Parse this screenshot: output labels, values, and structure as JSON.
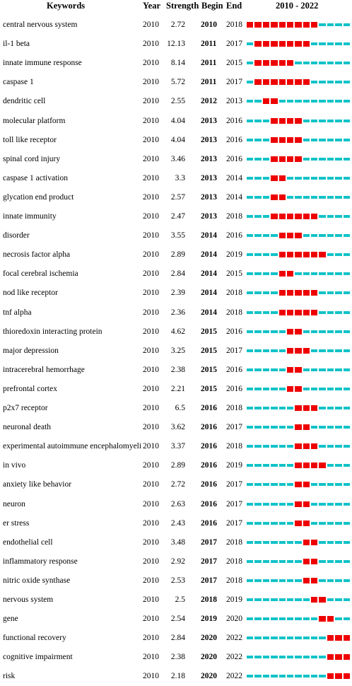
{
  "chart_data": {
    "type": "table",
    "headers": {
      "keyword": "Keywords",
      "year": "Year",
      "strength": "Strength",
      "begin": "Begin",
      "end": "End",
      "range": "2010 - 2022"
    },
    "timeline_range": [
      2010,
      2022
    ],
    "colors": {
      "burst": "#ee0000",
      "baseline": "#11c2c9"
    },
    "rows": [
      {
        "keyword": "central nervous system",
        "year": "2010",
        "strength": "2.72",
        "begin": "2010",
        "end": "2018"
      },
      {
        "keyword": "il-1 beta",
        "year": "2010",
        "strength": "12.13",
        "begin": "2011",
        "end": "2017"
      },
      {
        "keyword": "innate immune response",
        "year": "2010",
        "strength": "8.14",
        "begin": "2011",
        "end": "2015"
      },
      {
        "keyword": "caspase 1",
        "year": "2010",
        "strength": "5.72",
        "begin": "2011",
        "end": "2017"
      },
      {
        "keyword": "dendritic cell",
        "year": "2010",
        "strength": "2.55",
        "begin": "2012",
        "end": "2013"
      },
      {
        "keyword": "molecular platform",
        "year": "2010",
        "strength": "4.04",
        "begin": "2013",
        "end": "2016"
      },
      {
        "keyword": "toll like receptor",
        "year": "2010",
        "strength": "4.04",
        "begin": "2013",
        "end": "2016"
      },
      {
        "keyword": "spinal cord injury",
        "year": "2010",
        "strength": "3.46",
        "begin": "2013",
        "end": "2016"
      },
      {
        "keyword": "caspase 1 activation",
        "year": "2010",
        "strength": "3.3",
        "begin": "2013",
        "end": "2014"
      },
      {
        "keyword": "glycation end product",
        "year": "2010",
        "strength": "2.57",
        "begin": "2013",
        "end": "2014"
      },
      {
        "keyword": "innate immunity",
        "year": "2010",
        "strength": "2.47",
        "begin": "2013",
        "end": "2018"
      },
      {
        "keyword": "disorder",
        "year": "2010",
        "strength": "3.55",
        "begin": "2014",
        "end": "2016"
      },
      {
        "keyword": "necrosis factor alpha",
        "year": "2010",
        "strength": "2.89",
        "begin": "2014",
        "end": "2019"
      },
      {
        "keyword": "focal cerebral ischemia",
        "year": "2010",
        "strength": "2.84",
        "begin": "2014",
        "end": "2015"
      },
      {
        "keyword": "nod like receptor",
        "year": "2010",
        "strength": "2.39",
        "begin": "2014",
        "end": "2018"
      },
      {
        "keyword": "tnf alpha",
        "year": "2010",
        "strength": "2.36",
        "begin": "2014",
        "end": "2018"
      },
      {
        "keyword": "thioredoxin interacting protein",
        "year": "2010",
        "strength": "4.62",
        "begin": "2015",
        "end": "2016"
      },
      {
        "keyword": "major depression",
        "year": "2010",
        "strength": "3.25",
        "begin": "2015",
        "end": "2017"
      },
      {
        "keyword": "intracerebral hemorrhage",
        "year": "2010",
        "strength": "2.38",
        "begin": "2015",
        "end": "2016"
      },
      {
        "keyword": "prefrontal cortex",
        "year": "2010",
        "strength": "2.21",
        "begin": "2015",
        "end": "2016"
      },
      {
        "keyword": "p2x7 receptor",
        "year": "2010",
        "strength": "6.5",
        "begin": "2016",
        "end": "2018"
      },
      {
        "keyword": "neuronal death",
        "year": "2010",
        "strength": "3.62",
        "begin": "2016",
        "end": "2017"
      },
      {
        "keyword": "experimental autoimmune encephalomyeliti",
        "year": "2010",
        "strength": "3.37",
        "begin": "2016",
        "end": "2018"
      },
      {
        "keyword": "in vivo",
        "year": "2010",
        "strength": "2.89",
        "begin": "2016",
        "end": "2019"
      },
      {
        "keyword": "anxiety like behavior",
        "year": "2010",
        "strength": "2.72",
        "begin": "2016",
        "end": "2017"
      },
      {
        "keyword": "neuron",
        "year": "2010",
        "strength": "2.63",
        "begin": "2016",
        "end": "2017"
      },
      {
        "keyword": "er stress",
        "year": "2010",
        "strength": "2.43",
        "begin": "2016",
        "end": "2017"
      },
      {
        "keyword": "endothelial cell",
        "year": "2010",
        "strength": "3.48",
        "begin": "2017",
        "end": "2018"
      },
      {
        "keyword": "inflammatory response",
        "year": "2010",
        "strength": "2.92",
        "begin": "2017",
        "end": "2018"
      },
      {
        "keyword": "nitric oxide synthase",
        "year": "2010",
        "strength": "2.53",
        "begin": "2017",
        "end": "2018"
      },
      {
        "keyword": "nervous system",
        "year": "2010",
        "strength": "2.5",
        "begin": "2018",
        "end": "2019"
      },
      {
        "keyword": "gene",
        "year": "2010",
        "strength": "2.54",
        "begin": "2019",
        "end": "2020"
      },
      {
        "keyword": "functional recovery",
        "year": "2010",
        "strength": "2.84",
        "begin": "2020",
        "end": "2022"
      },
      {
        "keyword": "cognitive impairment",
        "year": "2010",
        "strength": "2.38",
        "begin": "2020",
        "end": "2022"
      },
      {
        "keyword": "risk",
        "year": "2010",
        "strength": "2.18",
        "begin": "2020",
        "end": "2022"
      }
    ]
  }
}
